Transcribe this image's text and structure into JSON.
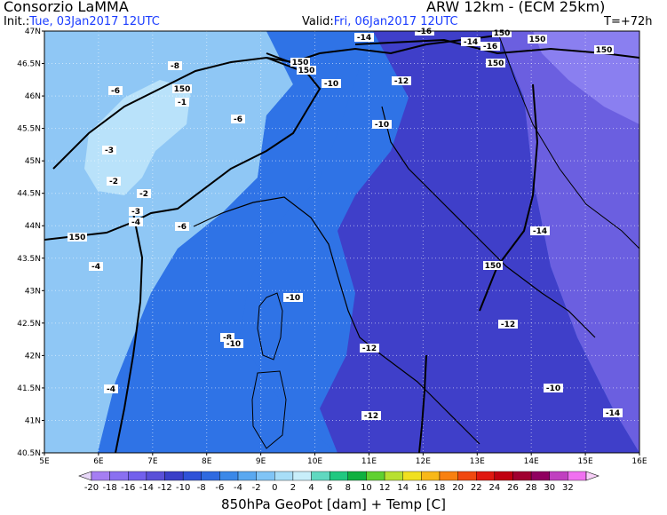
{
  "header": {
    "title": "Consorzio LaMMA",
    "model": "ARW 12km - (ECM 25km)",
    "init_label": "Init.:",
    "init_value": "Tue, 03Jan2017 12UTC",
    "valid_label": "Valid:",
    "valid_value": "Fri, 06Jan2017 12UTC",
    "lead_time": "T=+72h"
  },
  "map": {
    "lat_labels": [
      "47N",
      "46.5N",
      "46N",
      "45.5N",
      "45N",
      "44.5N",
      "44N",
      "43.5N",
      "43N",
      "42.5N",
      "42N",
      "41.5N",
      "41N",
      "40.5N"
    ],
    "lon_labels": [
      "5E",
      "6E",
      "7E",
      "8E",
      "9E",
      "10E",
      "11E",
      "12E",
      "13E",
      "14E",
      "15E",
      "16E"
    ],
    "temperature_labels": [
      "-14",
      "-16",
      "-14",
      "-16",
      "-8",
      "-10",
      "-12",
      "-6",
      "-1",
      "-10",
      "-6",
      "-3",
      "-2",
      "-2",
      "-3",
      "-4",
      "-6",
      "-14",
      "-4",
      "-10",
      "-12",
      "-8",
      "-12",
      "-10",
      "-12",
      "-4",
      "-10",
      "-14"
    ],
    "geopotential_labels": [
      "150",
      "150",
      "150",
      "150",
      "150",
      "150",
      "150",
      "150",
      "150"
    ],
    "colors": {
      "warm_land": "#8fc7f5",
      "alps_light": "#b9e2fa",
      "mid_blue": "#2f73e6",
      "deep_blue": "#3f3fc9",
      "violet": "#6b5fe0",
      "lavender": "#8a7ff0"
    }
  },
  "colorbar": {
    "values": [
      "-20",
      "-18",
      "-16",
      "-14",
      "-12",
      "-10",
      "-8",
      "-6",
      "-4",
      "-2",
      "0",
      "2",
      "4",
      "6",
      "8",
      "10",
      "12",
      "14",
      "16",
      "18",
      "20",
      "22",
      "24",
      "26",
      "28",
      "30",
      "32"
    ],
    "colors": [
      "#a57ef2",
      "#8a70f0",
      "#7260ec",
      "#5a50d8",
      "#3a3fc8",
      "#2f52d8",
      "#2f6ae0",
      "#3b88e8",
      "#5aa8f0",
      "#80c4f6",
      "#a8def8",
      "#c8eefa",
      "#60d8c0",
      "#20c880",
      "#10b040",
      "#60d030",
      "#b8e030",
      "#f0e020",
      "#f8b818",
      "#f88010",
      "#f04810",
      "#e01810",
      "#c00010",
      "#a00030",
      "#900060",
      "#c040c0",
      "#f070f0"
    ],
    "left_arrow_color": "#e8d8f8",
    "right_arrow_color": "#f8d0f8"
  },
  "footer": {
    "caption": "850hPa GeoPot [dam] + Temp [C]"
  }
}
